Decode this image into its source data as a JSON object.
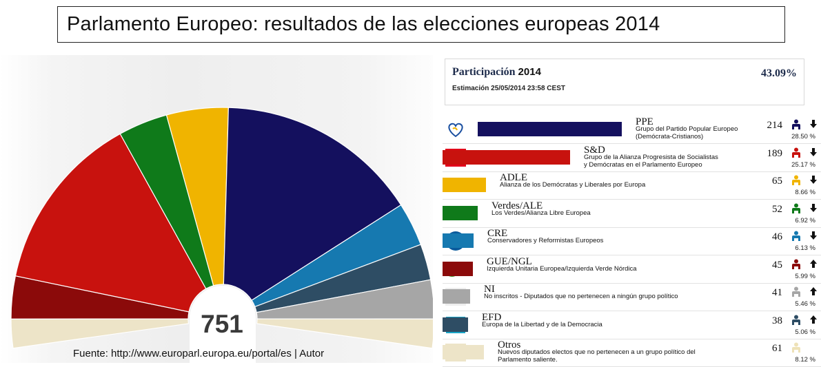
{
  "title": "Parlamento Europeo: resultados de las elecciones europeas 2014",
  "total_seats": "751",
  "source": "Fuente: http://www.europarl.europa.eu/portal/es  | Autor",
  "participation": {
    "label": "Participación",
    "year": "2014",
    "estimate": "Estimación 25/05/2014 23:58 CEST",
    "value": "43.09%"
  },
  "chart_data": {
    "type": "pie",
    "subtype": "parliament-hemicycle",
    "total": 751,
    "slices": [
      {
        "abbr": "GUE/NGL",
        "seats": 45,
        "color": "#8b0a0a"
      },
      {
        "abbr": "S&D",
        "seats": 189,
        "color": "#c8120e"
      },
      {
        "abbr": "Verdes/ALE",
        "seats": 52,
        "color": "#0f7a1a"
      },
      {
        "abbr": "ADLE",
        "seats": 65,
        "color": "#f0b400"
      },
      {
        "abbr": "PPE",
        "seats": 214,
        "color": "#14105e"
      },
      {
        "abbr": "CRE",
        "seats": 46,
        "color": "#1679b0"
      },
      {
        "abbr": "EFD",
        "seats": 38,
        "color": "#2e4d64"
      },
      {
        "abbr": "NI",
        "seats": 41,
        "color": "#a6a6a6"
      },
      {
        "abbr": "Otros",
        "seats": 61,
        "color": "#ede4c8"
      }
    ],
    "hemicycle_order": [
      "Otros",
      "GUE/NGL",
      "S&D",
      "Verdes/ALE",
      "ADLE",
      "PPE",
      "CRE",
      "EFD",
      "NI",
      "Otros"
    ]
  },
  "parties": [
    {
      "abbr": "PPE",
      "desc1": "Grupo del Partido Popular Europeo",
      "desc2": "(Demócrata-Cristianos)",
      "seats": "214",
      "pct": "28.50 %",
      "color": "#14105e",
      "logo": "ppe-heart-icon",
      "trend": "down"
    },
    {
      "abbr": "S&D",
      "desc1": "Grupo de la Alianza Progresista de Socialistas",
      "desc2": "y Demócratas en el Parlamento Europeo",
      "seats": "189",
      "pct": "25.17 %",
      "color": "#c8120e",
      "logo": "S&D",
      "trend": "down"
    },
    {
      "abbr": "ADLE",
      "desc1": "Alianza de los Demócratas y Liberales por Europa",
      "desc2": "",
      "seats": "65",
      "pct": "8.66 %",
      "color": "#f0b400",
      "logo": "adle-stars-icon",
      "trend": "down"
    },
    {
      "abbr": "Verdes/ALE",
      "desc1": "Los Verdes/Alianza Libre Europea",
      "desc2": "",
      "seats": "52",
      "pct": "6.92 %",
      "color": "#0f7a1a",
      "logo": "verdes-sunflower-icon",
      "trend": "down"
    },
    {
      "abbr": "CRE",
      "desc1": "Conservadores y Reformistas Europeos",
      "desc2": "",
      "seats": "46",
      "pct": "6.13 %",
      "color": "#1679b0",
      "logo": "ECR",
      "trend": "down"
    },
    {
      "abbr": "GUE/NGL",
      "desc1": "Izquierda Unitaria Europea/Izquierda Verde Nórdica",
      "desc2": "",
      "seats": "45",
      "pct": "5.99 %",
      "color": "#8b0a0a",
      "logo": "gue-flag-icon",
      "trend": "up"
    },
    {
      "abbr": "NI",
      "desc1": "No inscritos - Diputados que no pertenecen a ningún grupo político",
      "desc2": "",
      "seats": "41",
      "pct": "5.46 %",
      "color": "#a6a6a6",
      "logo": "NI",
      "trend": "up"
    },
    {
      "abbr": "EFD",
      "desc1": "Europa de la Libertad y de la Democracia",
      "desc2": "",
      "seats": "38",
      "pct": "5.06 %",
      "color": "#2e4d64",
      "logo": "EFD",
      "trend": "up"
    },
    {
      "abbr": "Otros",
      "desc1": "Nuevos diputados electos que no pertenecen a un grupo político del",
      "desc2": "Parlamento saliente.",
      "seats": "61",
      "pct": "8.12 %",
      "color": "#ede4c8",
      "logo": "otros-blank-icon",
      "trend": "none"
    }
  ]
}
